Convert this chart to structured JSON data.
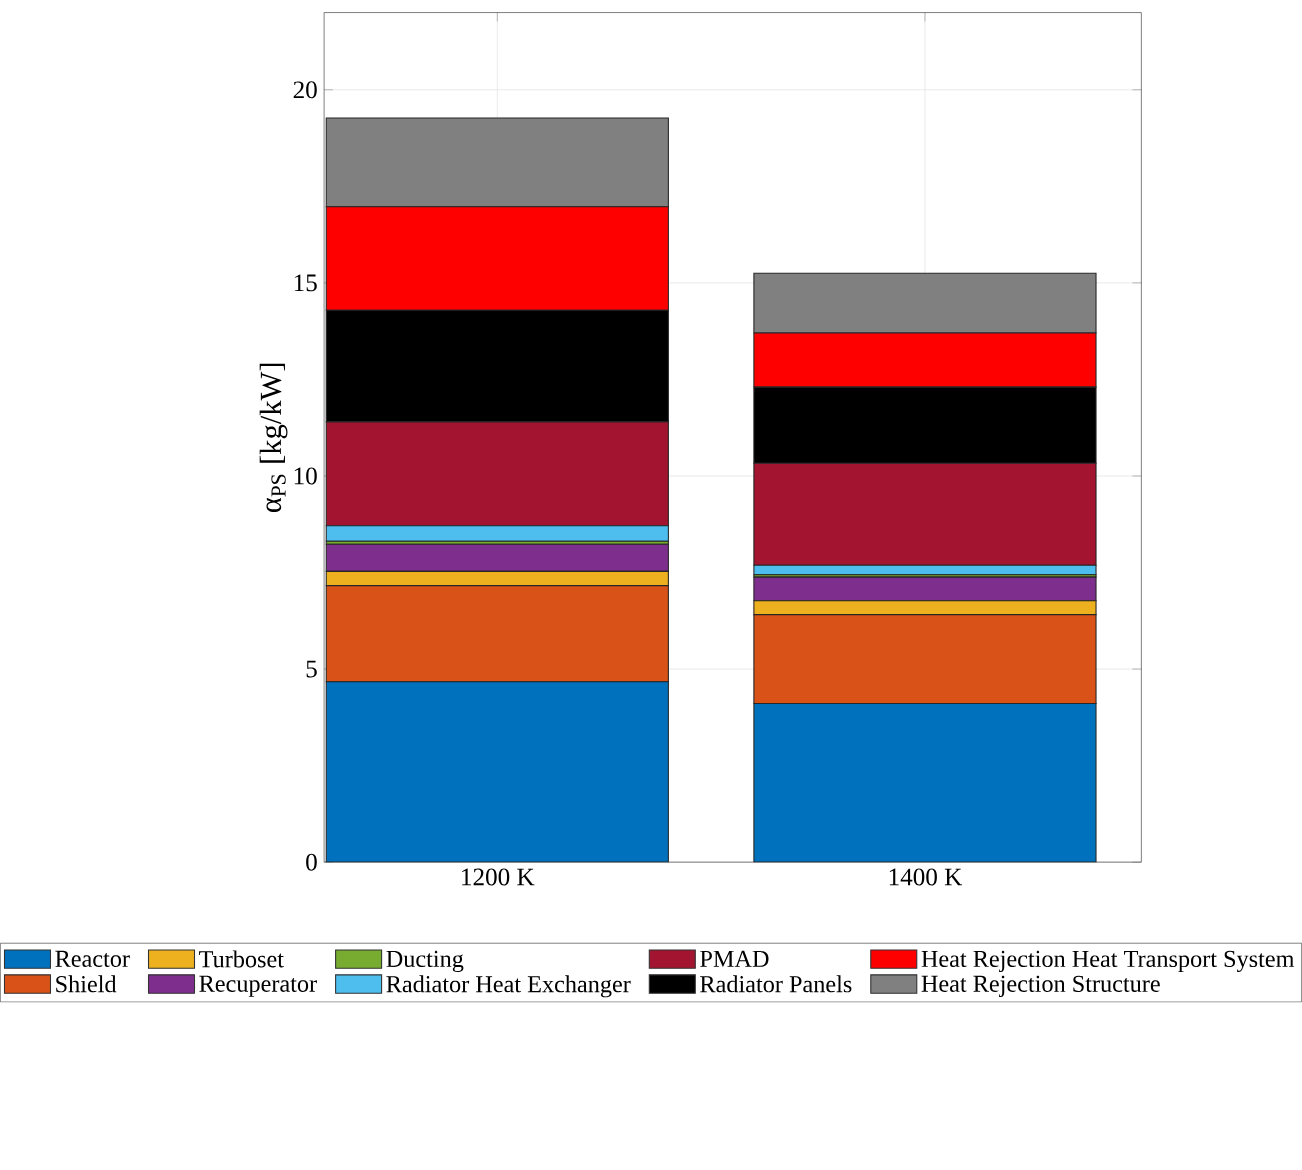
{
  "chart_data": {
    "type": "bar",
    "stacked": true,
    "ylabel": "α$_{PS}$ [kg/kW]",
    "categories": [
      "1200 K",
      "1400 K"
    ],
    "ylim": [
      0,
      22
    ],
    "yticks": [
      0,
      5,
      10,
      15,
      20
    ],
    "grid": true,
    "legend": "bottom",
    "series": [
      {
        "name": "Reactor",
        "color": "#0072bd",
        "values": [
          4.67,
          4.11
        ]
      },
      {
        "name": "Shield",
        "color": "#d95319",
        "values": [
          2.49,
          2.3
        ]
      },
      {
        "name": "Turboset",
        "color": "#edb120",
        "values": [
          0.37,
          0.36
        ]
      },
      {
        "name": "Recuperator",
        "color": "#7e2f8e",
        "values": [
          0.7,
          0.61
        ]
      },
      {
        "name": "Ducting",
        "color": "#77ac30",
        "values": [
          0.08,
          0.06
        ]
      },
      {
        "name": "Radiator Heat Exchanger",
        "color": "#4dbeee",
        "values": [
          0.4,
          0.25
        ]
      },
      {
        "name": "PMAD",
        "color": "#a2142f",
        "values": [
          2.69,
          2.64
        ]
      },
      {
        "name": "Radiator Panels",
        "color": "#000000",
        "values": [
          2.89,
          1.97
        ]
      },
      {
        "name": "Heat Rejection Heat Transport System",
        "color": "#ff0000",
        "values": [
          2.68,
          1.4
        ]
      },
      {
        "name": "Heat Rejection Structure",
        "color": "#808080",
        "values": [
          2.3,
          1.55
        ]
      }
    ]
  }
}
